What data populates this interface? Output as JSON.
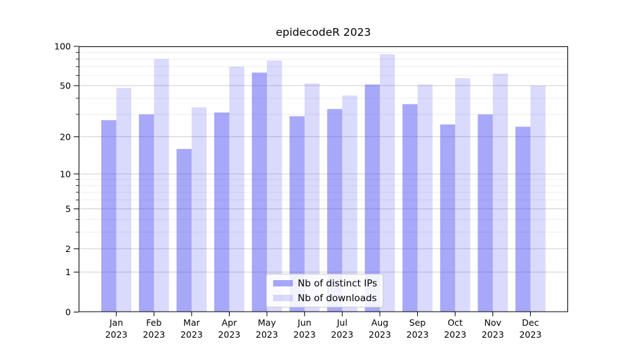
{
  "chart_data": {
    "type": "bar",
    "title": "epidecodeR 2023",
    "categories": [
      "Jan",
      "Feb",
      "Mar",
      "Apr",
      "May",
      "Jun",
      "Jul",
      "Aug",
      "Sep",
      "Oct",
      "Nov",
      "Dec"
    ],
    "category_year_label": "2023",
    "series": [
      {
        "name": "Nb of distinct IPs",
        "values": [
          27,
          30,
          16,
          31,
          63,
          29,
          33,
          51,
          36,
          25,
          30,
          24
        ]
      },
      {
        "name": "Nb of downloads",
        "values": [
          48,
          80,
          34,
          70,
          78,
          52,
          42,
          87,
          51,
          57,
          62,
          50
        ]
      }
    ],
    "y_scale": "log1p",
    "ylim": [
      0,
      100
    ],
    "y_major_ticks": [
      0,
      1,
      2,
      5,
      10,
      20,
      50,
      100
    ],
    "y_minor_ticks": [
      3,
      4,
      6,
      7,
      8,
      9,
      30,
      40,
      60,
      70,
      80,
      90
    ],
    "grid": "major and minor horizontal gridlines",
    "legend_position": "lower center"
  },
  "colors": {
    "bar_base": "#4646f2",
    "ips_fill": "rgba(70,70,242,0.47)",
    "downloads_fill": "rgba(70,70,242,0.20)",
    "grid_major": "#cfcfcf",
    "grid_minor": "#ededed",
    "spine": "#000000",
    "text": "#000000"
  }
}
